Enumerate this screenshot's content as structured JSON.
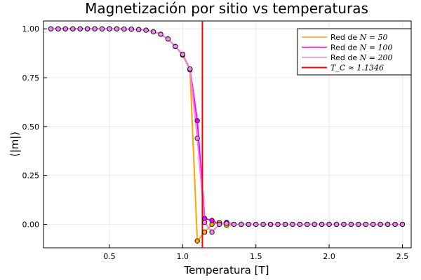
{
  "chart_data": {
    "type": "line",
    "title": "Magnetización por sitio vs temperaturas",
    "xlabel": "Temperatura [T]",
    "ylabel": "⟨|m|⟩",
    "xlim": [
      0.05,
      2.56
    ],
    "ylim": [
      -0.12,
      1.04
    ],
    "xticks": [
      0.5,
      1.0,
      1.5,
      2.0,
      2.5
    ],
    "xtick_labels": [
      "0.5",
      "1.0",
      "1.5",
      "2.0",
      "2.5"
    ],
    "yticks": [
      0.0,
      0.25,
      0.5,
      0.75,
      1.0
    ],
    "ytick_labels": [
      "0.00",
      "0.25",
      "0.50",
      "0.75",
      "1.00"
    ],
    "grid": true,
    "legend_position": "top-right",
    "x": [
      0.1,
      0.15,
      0.2,
      0.25,
      0.3,
      0.35,
      0.4,
      0.45,
      0.5,
      0.55,
      0.6,
      0.65,
      0.7,
      0.75,
      0.8,
      0.85,
      0.9,
      0.95,
      1.0,
      1.05,
      1.1,
      1.15,
      1.2,
      1.25,
      1.3,
      1.35,
      1.4,
      1.45,
      1.5,
      1.55,
      1.6,
      1.65,
      1.7,
      1.75,
      1.8,
      1.85,
      1.9,
      1.95,
      2.0,
      2.05,
      2.1,
      2.15,
      2.2,
      2.25,
      2.3,
      2.35,
      2.4,
      2.45,
      2.5
    ],
    "series": [
      {
        "name_prefix": "Red de ",
        "name_math": "N = 50",
        "color": "#FFA500",
        "values": [
          1.0,
          1.0,
          1.0,
          1.0,
          1.0,
          1.0,
          1.0,
          1.0,
          1.0,
          1.0,
          0.999,
          0.998,
          0.996,
          0.993,
          0.985,
          0.972,
          0.948,
          0.91,
          0.865,
          0.79,
          -0.085,
          -0.04,
          0.0,
          0.01,
          -0.005,
          0.0,
          0.0,
          0.0,
          0.0,
          0.0,
          0.0,
          0.0,
          0.0,
          0.0,
          0.0,
          0.0,
          0.0,
          0.0,
          0.0,
          0.0,
          0.0,
          0.0,
          0.0,
          0.0,
          0.0,
          0.0,
          0.0,
          0.0,
          0.0
        ]
      },
      {
        "name_prefix": "Red de ",
        "name_math": "N = 100",
        "color": "#FF00FF",
        "values": [
          1.0,
          1.0,
          1.0,
          1.0,
          1.0,
          1.0,
          1.0,
          1.0,
          1.0,
          1.0,
          0.999,
          0.998,
          0.996,
          0.993,
          0.985,
          0.972,
          0.948,
          0.91,
          0.87,
          0.795,
          0.53,
          0.03,
          0.02,
          0.0,
          0.01,
          0.0,
          0.0,
          0.0,
          0.0,
          0.0,
          0.0,
          0.0,
          0.0,
          0.0,
          0.0,
          0.0,
          0.0,
          0.0,
          0.0,
          0.0,
          0.0,
          0.0,
          0.0,
          0.0,
          0.0,
          0.0,
          0.0,
          0.0,
          0.0
        ]
      },
      {
        "name_prefix": "Red de ",
        "name_math": "N = 200",
        "color": "#EE82EE",
        "values": [
          1.0,
          1.0,
          1.0,
          1.0,
          1.0,
          1.0,
          1.0,
          1.0,
          1.0,
          1.0,
          0.999,
          0.998,
          0.996,
          0.993,
          0.985,
          0.972,
          0.948,
          0.91,
          0.87,
          0.795,
          0.44,
          0.01,
          -0.04,
          0.0,
          0.005,
          0.0,
          0.0,
          0.0,
          0.0,
          0.0,
          0.0,
          0.0,
          0.0,
          0.0,
          0.0,
          0.0,
          0.0,
          0.0,
          0.0,
          0.0,
          0.0,
          0.0,
          0.0,
          0.0,
          0.0,
          0.0,
          0.0,
          0.0,
          0.0
        ]
      }
    ],
    "vline": {
      "name_math": "T_C ≈ 1.1346",
      "x": 1.1346,
      "color": "#FF0000"
    }
  }
}
